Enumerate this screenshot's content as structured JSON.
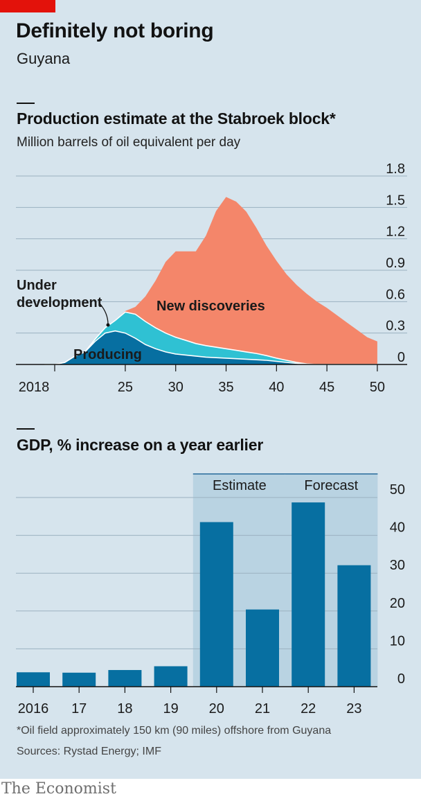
{
  "headline": "Definitely not boring",
  "subheadline": "Guyana",
  "colors": {
    "panel_bg": "#d6e4ed",
    "red_tag": "#e3120b",
    "producing": "#076fa1",
    "under_development": "#2fc1d3",
    "new_discoveries": "#f4866a",
    "bar": "#076fa1",
    "shade": "#b9d3e2",
    "grid": "#9bb1c0"
  },
  "chart_data": [
    {
      "type": "area",
      "stacked": true,
      "title": "Production estimate at the Stabroek block*",
      "subtitle": "Million barrels of oil equivalent per day",
      "x_tick_labels": [
        "2018",
        "25",
        "30",
        "35",
        "40",
        "45",
        "50"
      ],
      "y_tick_labels": [
        "1.8",
        "1.5",
        "1.2",
        "0.9",
        "0.6",
        "0.3",
        "0"
      ],
      "xlim": [
        2017,
        2051
      ],
      "ylim": [
        0,
        1.8
      ],
      "grid": true,
      "x": [
        2017,
        2018,
        2019,
        2020,
        2021,
        2022,
        2023,
        2024,
        2025,
        2026,
        2027,
        2028,
        2029,
        2030,
        2031,
        2032,
        2033,
        2034,
        2035,
        2036,
        2037,
        2038,
        2039,
        2040,
        2041,
        2042,
        2043,
        2044,
        2045,
        2046,
        2047,
        2048,
        2049,
        2050
      ],
      "series": [
        {
          "name": "Producing",
          "label": "Producing",
          "values": [
            0,
            0,
            0.02,
            0.08,
            0.12,
            0.22,
            0.3,
            0.32,
            0.3,
            0.25,
            0.19,
            0.15,
            0.12,
            0.1,
            0.09,
            0.08,
            0.07,
            0.065,
            0.06,
            0.055,
            0.05,
            0.045,
            0.04,
            0.03,
            0.02,
            0.01,
            0,
            0,
            0,
            0,
            0,
            0,
            0,
            0
          ]
        },
        {
          "name": "Under development",
          "label": "Under development",
          "values": [
            0,
            0,
            0,
            0,
            0,
            0.02,
            0.05,
            0.1,
            0.2,
            0.23,
            0.22,
            0.2,
            0.18,
            0.16,
            0.14,
            0.12,
            0.11,
            0.1,
            0.09,
            0.08,
            0.07,
            0.06,
            0.045,
            0.03,
            0.02,
            0.01,
            0.005,
            0,
            0,
            0,
            0,
            0,
            0,
            0
          ]
        },
        {
          "name": "New discoveries",
          "label": "New discoveries",
          "values": [
            0,
            0,
            0,
            0,
            0,
            0,
            0,
            0,
            0.01,
            0.07,
            0.24,
            0.45,
            0.68,
            0.82,
            0.85,
            0.88,
            1.05,
            1.3,
            1.45,
            1.42,
            1.34,
            1.2,
            1.05,
            0.93,
            0.82,
            0.74,
            0.67,
            0.6,
            0.54,
            0.47,
            0.4,
            0.33,
            0.26,
            0.22
          ]
        }
      ]
    },
    {
      "type": "bar",
      "title": "GDP, % increase on a year earlier",
      "categories": [
        "2016",
        "17",
        "18",
        "19",
        "20",
        "21",
        "22",
        "23"
      ],
      "values": [
        3.8,
        3.7,
        4.4,
        5.4,
        43.5,
        20.4,
        48.7,
        32.1
      ],
      "y_tick_labels": [
        "50",
        "40",
        "30",
        "20",
        "10",
        "0"
      ],
      "ylim": [
        0,
        50
      ],
      "grid": true,
      "shaded_regions": [
        {
          "label": "Estimate",
          "categories": [
            "20",
            "21"
          ]
        },
        {
          "label": "Forecast",
          "categories": [
            "22",
            "23"
          ]
        }
      ]
    }
  ],
  "footnote": "*Oil field approximately 150 km (90 miles) offshore from Guyana",
  "sources": "Sources: Rystad Energy; IMF",
  "brand": "The Economist"
}
